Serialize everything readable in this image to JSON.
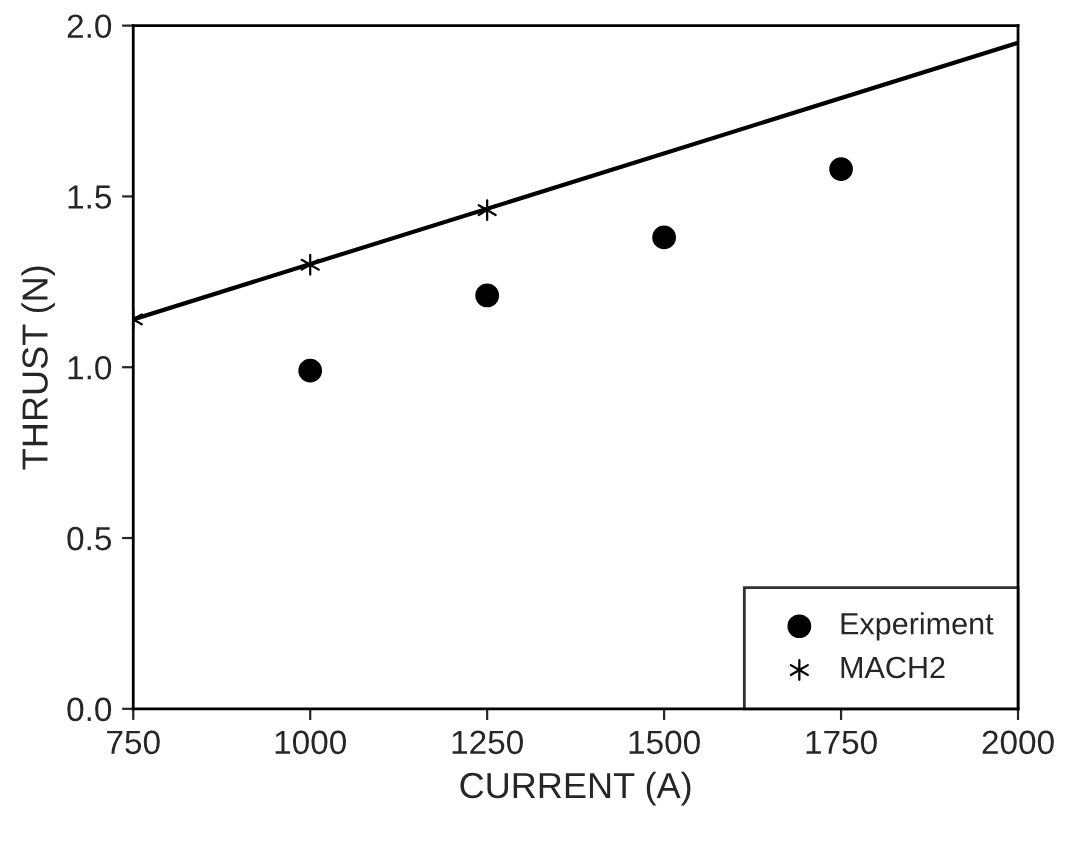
{
  "chart_data": {
    "type": "scatter",
    "xlabel": "CURRENT (A)",
    "ylabel": "THRUST (N)",
    "xlim": [
      750,
      2000
    ],
    "xticks": [
      750,
      1000,
      1250,
      1500,
      1750,
      2000
    ],
    "ylim": [
      0.0,
      2.0
    ],
    "yticks": [
      {
        "value": 0.0,
        "label": "0.0"
      },
      {
        "value": 0.5,
        "label": "0.5"
      },
      {
        "value": 1.0,
        "label": "1.0"
      },
      {
        "value": 1.5,
        "label": "1.5"
      },
      {
        "value": 2.0,
        "label": "2.0"
      }
    ],
    "grid": false,
    "legend": "bottom right",
    "series": [
      {
        "name": "Experiment",
        "marker": "circle",
        "color": "#000000",
        "x": [
          1000,
          1250,
          1500,
          1750
        ],
        "values": [
          0.99,
          1.21,
          1.38,
          1.58
        ]
      },
      {
        "name": "MACH2",
        "marker": "cross",
        "color": "#000000",
        "x": [
          750,
          1000,
          1250
        ],
        "values": [
          1.14,
          1.3,
          1.46
        ]
      },
      {
        "type": "line",
        "marker": "none",
        "line_style": "solid",
        "color": "#000000",
        "x": [
          750,
          2000
        ],
        "values": [
          1.14,
          1.95
        ]
      }
    ]
  }
}
